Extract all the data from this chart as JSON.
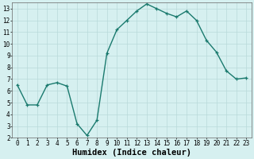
{
  "x": [
    0,
    1,
    2,
    3,
    4,
    5,
    6,
    7,
    8,
    9,
    10,
    11,
    12,
    13,
    14,
    15,
    16,
    17,
    18,
    19,
    20,
    21,
    22,
    23
  ],
  "y": [
    6.5,
    4.8,
    4.8,
    6.5,
    6.7,
    6.4,
    3.2,
    2.2,
    3.5,
    9.2,
    11.2,
    12.0,
    12.8,
    13.4,
    13.0,
    12.6,
    12.3,
    12.8,
    12.0,
    10.3,
    9.3,
    7.7,
    7.0,
    7.1
  ],
  "line_color": "#1a7a6e",
  "marker": "+",
  "bg_color": "#d6f0f0",
  "grid_color": "#b8dada",
  "xlabel": "Humidex (Indice chaleur)",
  "ylim": [
    2,
    13.5
  ],
  "xlim": [
    -0.5,
    23.5
  ],
  "yticks": [
    2,
    3,
    4,
    5,
    6,
    7,
    8,
    9,
    10,
    11,
    12,
    13
  ],
  "xticks": [
    0,
    1,
    2,
    3,
    4,
    5,
    6,
    7,
    8,
    9,
    10,
    11,
    12,
    13,
    14,
    15,
    16,
    17,
    18,
    19,
    20,
    21,
    22,
    23
  ],
  "tick_label_fontsize": 5.5,
  "xlabel_fontsize": 7.5,
  "xlabel_fontweight": "bold",
  "linewidth": 1.0,
  "markersize": 3.5,
  "markeredgewidth": 0.9
}
